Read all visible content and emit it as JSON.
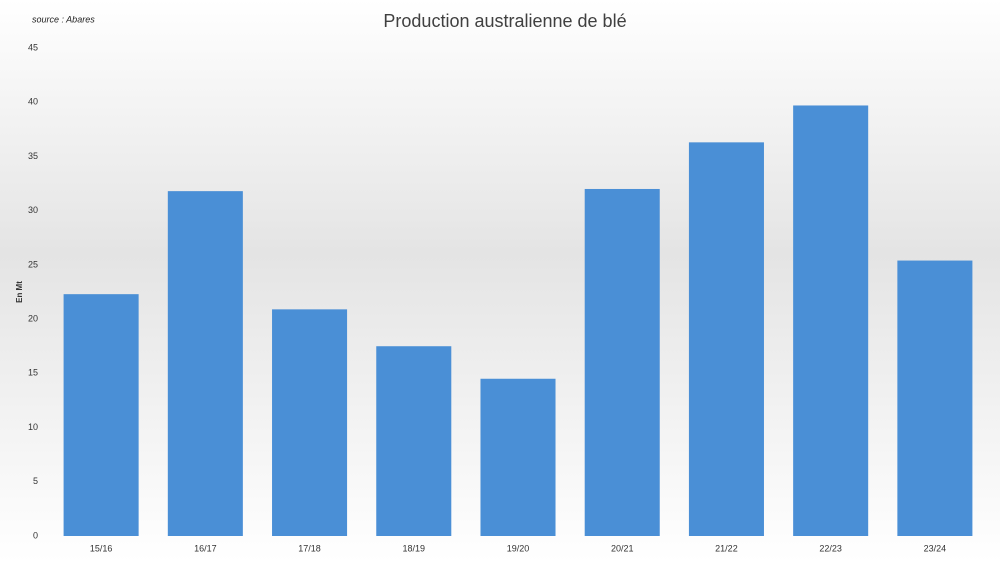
{
  "chart_data": {
    "type": "bar",
    "title": "Production australienne de blé",
    "subtitle": "source : Abares",
    "y_label": "En Mt",
    "categories": [
      "15/16",
      "16/17",
      "17/18",
      "18/19",
      "19/20",
      "20/21",
      "21/22",
      "22/23",
      "23/24"
    ],
    "values": [
      22.3,
      31.8,
      20.9,
      17.5,
      14.5,
      32.0,
      36.3,
      39.7,
      25.4
    ],
    "color": "#4a8fd6",
    "ylim": [
      0,
      45
    ],
    "yticks": [
      0,
      5,
      10,
      15,
      20,
      25,
      30,
      35,
      40,
      45
    ],
    "grid": false
  }
}
